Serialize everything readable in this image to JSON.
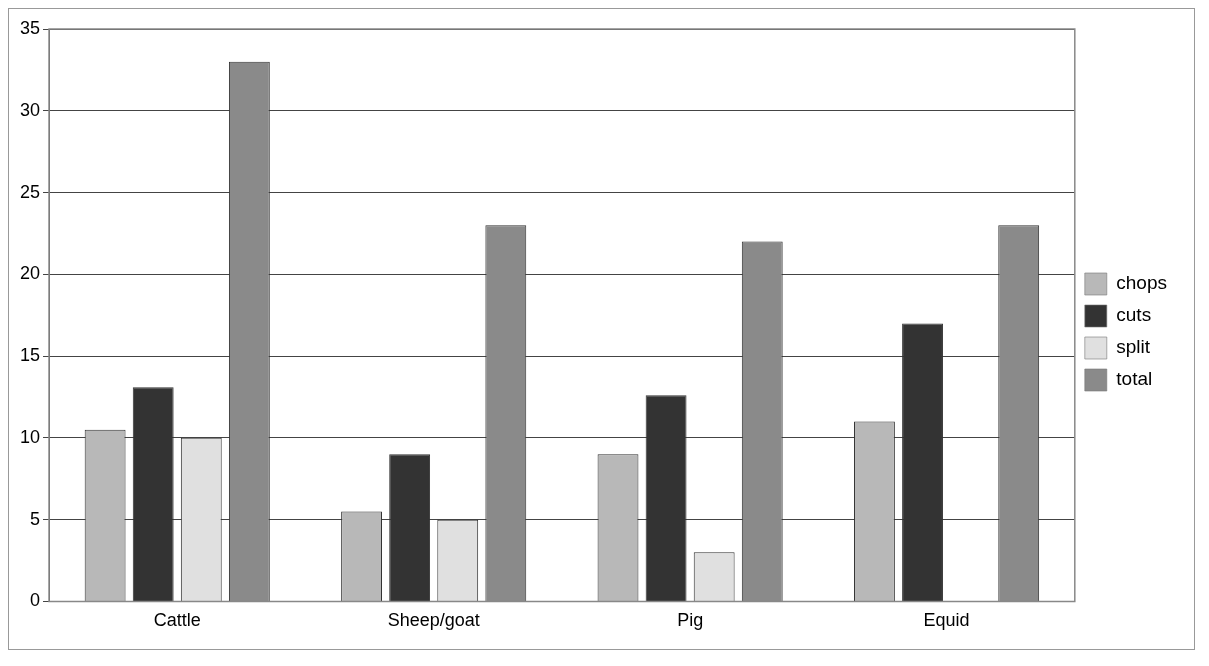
{
  "chart_data": {
    "type": "bar",
    "categories": [
      "Cattle",
      "Sheep/goat",
      "Pig",
      "Equid"
    ],
    "series": [
      {
        "name": "chops",
        "color": "#b8b8b8",
        "values": [
          10.5,
          5.5,
          9,
          11
        ]
      },
      {
        "name": "cuts",
        "color": "#333333",
        "values": [
          13.1,
          9,
          12.6,
          17
        ]
      },
      {
        "name": "split",
        "color": "#e0e0e0",
        "values": [
          10,
          5,
          3,
          0
        ]
      },
      {
        "name": "total",
        "color": "#8a8a8a",
        "values": [
          33,
          23,
          22,
          23
        ]
      }
    ],
    "ylim": [
      0,
      35
    ],
    "yticks": [
      0,
      5,
      10,
      15,
      20,
      25,
      30,
      35
    ],
    "grid": "y",
    "legend": "right"
  }
}
